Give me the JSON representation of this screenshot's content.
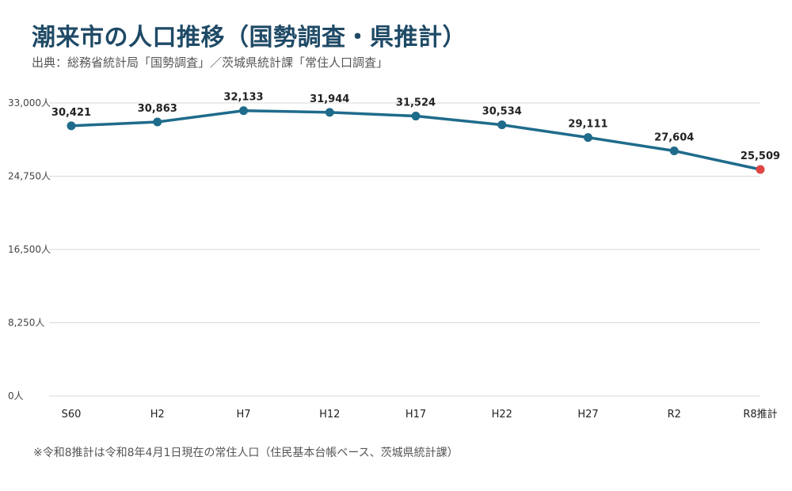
{
  "title": "潮来市の人口推移（国勢調査・県推計）",
  "subtitle": "出典：総務省統計局「国勢調査」／茨城県統計課「常住人口調査」",
  "note": "※令和8推計は令和8年4月1日現在の常住人口（住民基本台帳ベース、茨城県統計課）",
  "colors": {
    "title": "#1f4a66",
    "line": "#1f6b8c",
    "highlight": "#e04545",
    "grid": "#d9d9d9"
  },
  "chart_data": {
    "type": "line",
    "title": "潮来市の人口推移（国勢調査・県推計）",
    "categories": [
      "S60",
      "H2",
      "H7",
      "H12",
      "H17",
      "H22",
      "H27",
      "R2",
      "R8推計"
    ],
    "values": [
      30421,
      30863,
      32133,
      31944,
      31524,
      30534,
      29111,
      27604,
      25509
    ],
    "data_labels": [
      "30,421",
      "30,863",
      "32,133",
      "31,944",
      "31,524",
      "30,534",
      "29,111",
      "27,604",
      "25,509"
    ],
    "highlight_index": 8,
    "ylim": [
      0,
      33000
    ],
    "yticks": [
      0,
      8250,
      16500,
      24750,
      33000
    ],
    "ytick_labels": [
      "0人",
      "8,250人",
      "16,500人",
      "24,750人",
      "33,000人"
    ],
    "grid": true,
    "xlabel": "",
    "ylabel": ""
  }
}
